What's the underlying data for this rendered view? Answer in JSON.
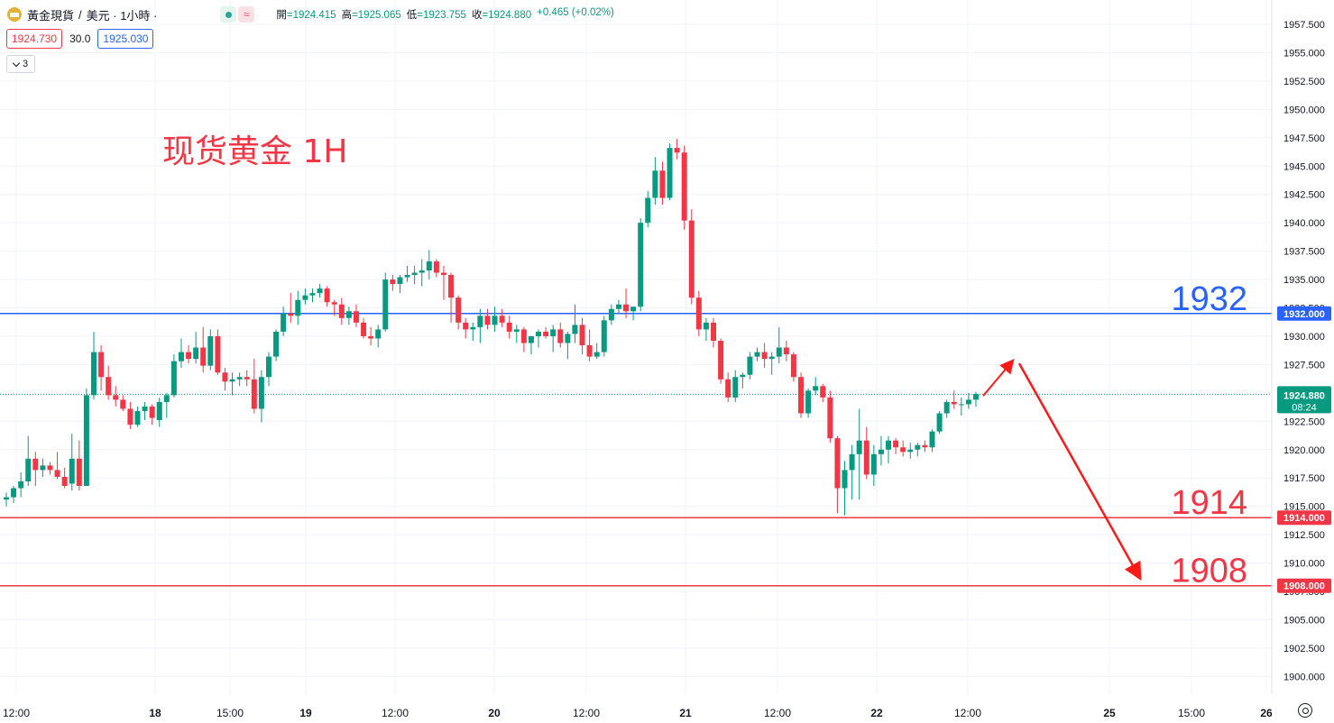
{
  "header": {
    "symbol": "黃金現貨",
    "separator": "/",
    "currency_interval": "美元 · 1小時 ·",
    "wave_icon": "≈",
    "ohlc": [
      {
        "k": "開",
        "v": "=1924.415"
      },
      {
        "k": "高",
        "v": "=1925.065"
      },
      {
        "k": "低",
        "v": "=1923.755"
      },
      {
        "k": "收",
        "v": "=1924.880"
      },
      {
        "k": "",
        "v": "+0.465 (+0.02%)"
      }
    ],
    "bid": "1924.730",
    "spread": "30.0",
    "ask": "1925.030",
    "indicators_count": "3"
  },
  "colors": {
    "up": "#089981",
    "down": "#f23645",
    "blue": "#2962ff",
    "red_level": "#f23645",
    "grid": "#f0f3fa",
    "arrow": "#ff1a1a"
  },
  "chart_data": {
    "type": "candlestick",
    "title": "现货黄金 1H",
    "instrument": "黃金現貨 / 美元",
    "interval": "1小時",
    "y_range": [
      1898.75,
      1960.0
    ],
    "y_ticks": [
      "1900.000",
      "1902.500",
      "1905.000",
      "1907.500",
      "1910.000",
      "1912.500",
      "1915.000",
      "1917.500",
      "1920.000",
      "1922.500",
      "1925.000",
      "1927.500",
      "1930.000",
      "1932.500",
      "1935.000",
      "1937.500",
      "1940.000",
      "1942.500",
      "1945.000",
      "1947.500",
      "1950.000",
      "1952.500",
      "1955.000",
      "1957.500"
    ],
    "x_labels": [
      "12:00",
      "18",
      "15:00",
      "19",
      "12:00",
      "20",
      "12:00",
      "21",
      "12:00",
      "22",
      "12:00",
      "25",
      "15:00",
      "26"
    ],
    "current_price": {
      "value": "1924.880",
      "countdown": "08:24"
    },
    "levels": [
      {
        "name": "resistance",
        "value": 1932.0,
        "label": "1932",
        "tag": "1932.000",
        "color": "blue"
      },
      {
        "name": "support-1",
        "value": 1914.0,
        "label": "1914",
        "tag": "1914.000",
        "color": "red"
      },
      {
        "name": "support-2",
        "value": 1908.0,
        "label": "1908",
        "tag": "1908.000",
        "color": "red"
      }
    ],
    "projection": [
      {
        "from": "last",
        "to": 1928.0
      },
      {
        "from": 1928.0,
        "to": 1908.0
      }
    ],
    "candles": [
      [
        1915.6,
        1916.2,
        1915.0,
        1915.8
      ],
      [
        1915.8,
        1916.8,
        1915.3,
        1916.6
      ],
      [
        1916.6,
        1918.0,
        1915.8,
        1917.2
      ],
      [
        1917.2,
        1921.2,
        1916.8,
        1919.2
      ],
      [
        1919.2,
        1919.8,
        1916.8,
        1918.2
      ],
      [
        1918.2,
        1919.2,
        1917.6,
        1918.6
      ],
      [
        1918.6,
        1918.9,
        1917.8,
        1918.2
      ],
      [
        1918.2,
        1919.8,
        1917.4,
        1917.6
      ],
      [
        1917.6,
        1918.4,
        1916.6,
        1916.8
      ],
      [
        1917.0,
        1921.4,
        1916.4,
        1919.2
      ],
      [
        1919.2,
        1920.8,
        1916.4,
        1916.8
      ],
      [
        1916.8,
        1925.4,
        1916.8,
        1924.8
      ],
      [
        1924.8,
        1930.4,
        1924.4,
        1928.6
      ],
      [
        1928.6,
        1929.2,
        1925.2,
        1926.4
      ],
      [
        1926.4,
        1927.4,
        1924.4,
        1924.8
      ],
      [
        1924.8,
        1925.6,
        1923.8,
        1924.4
      ],
      [
        1924.4,
        1924.8,
        1923.4,
        1923.6
      ],
      [
        1923.6,
        1924.2,
        1921.8,
        1922.2
      ],
      [
        1922.2,
        1923.8,
        1922.0,
        1923.4
      ],
      [
        1923.4,
        1924.2,
        1922.6,
        1923.8
      ],
      [
        1923.8,
        1924.0,
        1922.2,
        1922.8
      ],
      [
        1922.6,
        1924.6,
        1922.0,
        1924.2
      ],
      [
        1924.2,
        1925.0,
        1922.8,
        1924.8
      ],
      [
        1924.8,
        1928.4,
        1924.6,
        1927.8
      ],
      [
        1927.8,
        1929.8,
        1927.2,
        1928.6
      ],
      [
        1928.6,
        1929.2,
        1927.6,
        1928.0
      ],
      [
        1928.0,
        1930.4,
        1927.6,
        1929.0
      ],
      [
        1929.0,
        1930.8,
        1926.8,
        1927.4
      ],
      [
        1927.4,
        1930.6,
        1927.0,
        1930.0
      ],
      [
        1930.0,
        1930.6,
        1926.6,
        1926.8
      ],
      [
        1926.8,
        1927.2,
        1925.2,
        1926.0
      ],
      [
        1926.0,
        1926.8,
        1924.8,
        1926.2
      ],
      [
        1926.2,
        1926.8,
        1925.6,
        1926.4
      ],
      [
        1926.4,
        1927.0,
        1925.6,
        1926.2
      ],
      [
        1926.2,
        1928.0,
        1923.2,
        1923.6
      ],
      [
        1923.6,
        1927.0,
        1922.4,
        1926.4
      ],
      [
        1926.4,
        1928.6,
        1925.6,
        1928.2
      ],
      [
        1928.2,
        1930.6,
        1927.8,
        1930.4
      ],
      [
        1930.4,
        1932.6,
        1930.0,
        1932.0
      ],
      [
        1932.0,
        1933.8,
        1931.2,
        1931.8
      ],
      [
        1931.8,
        1934.0,
        1931.0,
        1933.2
      ],
      [
        1933.2,
        1934.2,
        1932.8,
        1933.6
      ],
      [
        1933.6,
        1934.2,
        1933.0,
        1933.8
      ],
      [
        1933.8,
        1934.6,
        1933.4,
        1934.2
      ],
      [
        1934.2,
        1934.4,
        1932.6,
        1933.0
      ],
      [
        1933.0,
        1933.2,
        1931.8,
        1932.8
      ],
      [
        1932.8,
        1933.4,
        1931.0,
        1931.6
      ],
      [
        1931.6,
        1932.6,
        1931.0,
        1932.2
      ],
      [
        1932.2,
        1932.8,
        1930.8,
        1931.2
      ],
      [
        1931.2,
        1931.6,
        1929.8,
        1930.0
      ],
      [
        1930.0,
        1930.8,
        1929.2,
        1929.8
      ],
      [
        1929.8,
        1931.0,
        1929.0,
        1930.6
      ],
      [
        1930.6,
        1935.6,
        1930.4,
        1935.0
      ],
      [
        1935.0,
        1935.4,
        1934.0,
        1934.6
      ],
      [
        1934.6,
        1935.4,
        1933.8,
        1935.2
      ],
      [
        1935.2,
        1936.2,
        1934.8,
        1935.4
      ],
      [
        1935.4,
        1936.2,
        1934.6,
        1935.6
      ],
      [
        1935.6,
        1936.8,
        1934.4,
        1935.8
      ],
      [
        1935.8,
        1937.6,
        1935.0,
        1936.6
      ],
      [
        1936.6,
        1936.8,
        1935.2,
        1935.6
      ],
      [
        1935.6,
        1936.2,
        1933.2,
        1935.4
      ],
      [
        1935.4,
        1935.6,
        1931.2,
        1933.4
      ],
      [
        1933.4,
        1933.6,
        1930.6,
        1931.2
      ],
      [
        1931.2,
        1931.6,
        1929.8,
        1930.6
      ],
      [
        1930.6,
        1931.2,
        1929.6,
        1930.8
      ],
      [
        1930.8,
        1932.4,
        1929.4,
        1931.8
      ],
      [
        1931.8,
        1932.4,
        1930.6,
        1931.0
      ],
      [
        1931.0,
        1932.6,
        1930.4,
        1931.8
      ],
      [
        1931.8,
        1932.4,
        1930.8,
        1931.2
      ],
      [
        1931.2,
        1931.8,
        1929.8,
        1930.4
      ],
      [
        1930.4,
        1931.0,
        1929.4,
        1930.6
      ],
      [
        1930.6,
        1930.8,
        1928.6,
        1929.4
      ],
      [
        1929.4,
        1930.0,
        1928.4,
        1930.0
      ],
      [
        1930.0,
        1930.6,
        1929.0,
        1930.4
      ],
      [
        1930.4,
        1930.8,
        1929.8,
        1930.0
      ],
      [
        1930.0,
        1931.0,
        1928.6,
        1930.6
      ],
      [
        1930.6,
        1931.2,
        1929.0,
        1929.4
      ],
      [
        1929.4,
        1930.4,
        1928.0,
        1930.2
      ],
      [
        1930.2,
        1932.8,
        1929.4,
        1931.0
      ],
      [
        1931.0,
        1931.6,
        1928.4,
        1929.2
      ],
      [
        1929.2,
        1930.6,
        1927.8,
        1928.2
      ],
      [
        1928.2,
        1929.4,
        1928.0,
        1928.6
      ],
      [
        1928.6,
        1931.8,
        1928.2,
        1931.4
      ],
      [
        1931.4,
        1932.8,
        1931.0,
        1932.4
      ],
      [
        1932.4,
        1933.2,
        1932.0,
        1932.8
      ],
      [
        1932.8,
        1934.2,
        1931.6,
        1932.2
      ],
      [
        1932.2,
        1932.6,
        1931.4,
        1932.6
      ],
      [
        1932.6,
        1940.4,
        1932.2,
        1940.0
      ],
      [
        1940.0,
        1942.8,
        1939.6,
        1942.2
      ],
      [
        1942.2,
        1945.8,
        1941.6,
        1944.6
      ],
      [
        1944.6,
        1945.4,
        1941.6,
        1942.2
      ],
      [
        1942.2,
        1947.0,
        1942.0,
        1946.6
      ],
      [
        1946.6,
        1947.4,
        1945.6,
        1946.2
      ],
      [
        1946.2,
        1946.8,
        1939.4,
        1940.2
      ],
      [
        1940.2,
        1941.2,
        1932.8,
        1933.4
      ],
      [
        1933.4,
        1934.0,
        1930.0,
        1930.6
      ],
      [
        1930.6,
        1931.6,
        1929.6,
        1931.2
      ],
      [
        1931.2,
        1931.6,
        1929.0,
        1929.6
      ],
      [
        1929.6,
        1929.8,
        1925.8,
        1926.2
      ],
      [
        1926.2,
        1926.8,
        1924.2,
        1924.6
      ],
      [
        1924.6,
        1927.0,
        1924.2,
        1926.4
      ],
      [
        1926.4,
        1926.8,
        1925.4,
        1926.6
      ],
      [
        1926.6,
        1928.6,
        1926.2,
        1928.2
      ],
      [
        1928.2,
        1929.0,
        1927.8,
        1928.6
      ],
      [
        1928.6,
        1929.4,
        1927.2,
        1928.0
      ],
      [
        1928.0,
        1928.6,
        1926.6,
        1928.2
      ],
      [
        1928.2,
        1930.8,
        1927.6,
        1929.0
      ],
      [
        1929.0,
        1929.6,
        1927.8,
        1928.4
      ],
      [
        1928.4,
        1928.6,
        1926.0,
        1926.4
      ],
      [
        1926.4,
        1926.8,
        1922.8,
        1923.2
      ],
      [
        1923.2,
        1925.4,
        1922.8,
        1925.2
      ],
      [
        1925.2,
        1926.4,
        1924.8,
        1925.6
      ],
      [
        1925.6,
        1925.8,
        1924.2,
        1924.6
      ],
      [
        1924.6,
        1925.2,
        1920.6,
        1921.0
      ],
      [
        1921.0,
        1921.2,
        1914.4,
        1916.6
      ],
      [
        1916.6,
        1919.0,
        1914.2,
        1918.2
      ],
      [
        1918.2,
        1920.4,
        1915.6,
        1919.6
      ],
      [
        1919.6,
        1923.6,
        1915.6,
        1920.8
      ],
      [
        1920.8,
        1922.0,
        1917.4,
        1917.8
      ],
      [
        1917.8,
        1920.4,
        1916.8,
        1919.6
      ],
      [
        1919.6,
        1921.2,
        1918.6,
        1920.0
      ],
      [
        1920.0,
        1921.2,
        1918.8,
        1920.8
      ],
      [
        1920.8,
        1921.0,
        1919.6,
        1920.2
      ],
      [
        1920.2,
        1920.8,
        1919.4,
        1919.8
      ],
      [
        1919.8,
        1920.6,
        1919.2,
        1920.0
      ],
      [
        1920.0,
        1920.6,
        1919.4,
        1920.4
      ],
      [
        1920.4,
        1920.8,
        1919.8,
        1920.2
      ],
      [
        1920.2,
        1921.8,
        1919.8,
        1921.6
      ],
      [
        1921.6,
        1923.4,
        1921.4,
        1923.2
      ],
      [
        1923.2,
        1924.4,
        1922.8,
        1924.2
      ],
      [
        1924.2,
        1925.2,
        1923.6,
        1924.0
      ],
      [
        1924.0,
        1924.6,
        1923.0,
        1924.0
      ],
      [
        1924.0,
        1925.0,
        1923.6,
        1924.4
      ],
      [
        1924.4,
        1925.1,
        1923.8,
        1924.9
      ]
    ]
  }
}
